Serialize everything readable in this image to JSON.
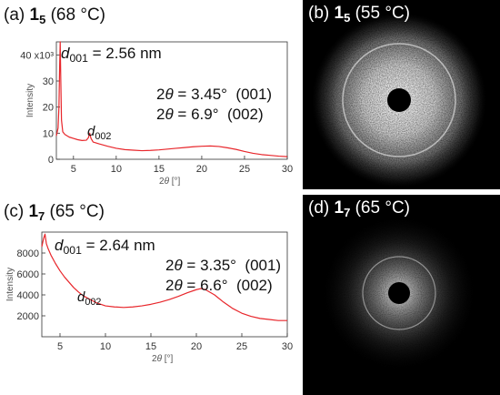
{
  "panels": {
    "a": {
      "label": "(a)",
      "compound": "1",
      "sub": "5",
      "temp": "(68 °C)"
    },
    "b": {
      "label": "(b)",
      "compound": "1",
      "sub": "5",
      "temp": "(55 °C)"
    },
    "c": {
      "label": "(c)",
      "compound": "1",
      "sub": "7",
      "temp": "(65 °C)"
    },
    "d": {
      "label": "(d)",
      "compound": "1",
      "sub": "7",
      "temp": "(65 °C)"
    }
  },
  "chart_data": [
    {
      "type": "line",
      "panel": "a",
      "xlabel": "2θ [°]",
      "ylabel": "Intensity",
      "xlim": [
        3,
        30
      ],
      "ylim": [
        0,
        45
      ],
      "xticks": [
        5,
        10,
        15,
        20,
        25,
        30
      ],
      "yticks": [
        0,
        10,
        20,
        30,
        40
      ],
      "ytick_labels": [
        "0",
        "10",
        "20",
        "30",
        "40 x10³"
      ],
      "annotations": {
        "d001": "d001 = 2.56 nm",
        "d002": "d002",
        "line1": "2θ = 3.45°  (001)",
        "line2": "2θ = 6.9°  (002)"
      },
      "series": [
        {
          "color": "#e8262b",
          "x": [
            3.0,
            3.2,
            3.3,
            3.38,
            3.45,
            3.52,
            3.6,
            3.75,
            4.0,
            4.5,
            5.0,
            5.5,
            6.0,
            6.5,
            6.75,
            6.9,
            7.05,
            7.3,
            8.0,
            9.0,
            10.0,
            11.0,
            12.0,
            13.0,
            14.0,
            15.0,
            16.0,
            17.0,
            18.0,
            19.0,
            20.0,
            21.0,
            22.0,
            23.0,
            24.0,
            25.0,
            26.0,
            27.0,
            28.0,
            29.0,
            30.0
          ],
          "y": [
            9.0,
            12.0,
            20.0,
            35.0,
            45.0,
            30.0,
            15.0,
            10.5,
            9.5,
            8.5,
            8.0,
            7.5,
            7.2,
            7.3,
            8.3,
            10.0,
            8.0,
            6.6,
            5.9,
            5.0,
            4.2,
            3.7,
            3.5,
            3.3,
            3.4,
            3.6,
            3.9,
            4.2,
            4.5,
            4.8,
            5.0,
            5.1,
            4.9,
            4.4,
            3.8,
            3.0,
            2.3,
            1.8,
            1.5,
            1.2,
            1.0
          ]
        }
      ]
    },
    {
      "type": "line",
      "panel": "c",
      "xlabel": "2θ [°]",
      "ylabel": "Intensity",
      "xlim": [
        3,
        30
      ],
      "ylim": [
        0,
        10000
      ],
      "xticks": [
        5,
        10,
        15,
        20,
        25,
        30
      ],
      "yticks": [
        2000,
        4000,
        6000,
        8000
      ],
      "ytick_labels": [
        "2000",
        "4000",
        "6000",
        "8000"
      ],
      "annotations": {
        "d001": "d001 = 2.64 nm",
        "d002": "d002",
        "line1": "2θ = 3.35°  (001)",
        "line2": "2θ = 6.6°  (002)"
      },
      "series": [
        {
          "color": "#e8262b",
          "x": [
            3.0,
            3.2,
            3.35,
            3.5,
            3.7,
            4.0,
            4.5,
            5.0,
            5.5,
            6.0,
            6.5,
            7.0,
            7.5,
            8.0,
            9.0,
            10.0,
            11.0,
            12.0,
            13.0,
            14.0,
            15.0,
            16.0,
            17.0,
            18.0,
            19.0,
            20.0,
            20.5,
            21.0,
            22.0,
            23.0,
            24.0,
            25.0,
            26.0,
            27.0,
            28.0,
            29.0,
            30.0
          ],
          "y": [
            8600,
            9400,
            9800,
            8900,
            8400,
            7800,
            7000,
            6300,
            5700,
            5200,
            4700,
            4300,
            3950,
            3700,
            3250,
            2950,
            2850,
            2800,
            2850,
            2950,
            3100,
            3300,
            3550,
            3850,
            4200,
            4500,
            4600,
            4500,
            4000,
            3300,
            2700,
            2250,
            1950,
            1750,
            1650,
            1550,
            1550
          ]
        }
      ]
    }
  ]
}
